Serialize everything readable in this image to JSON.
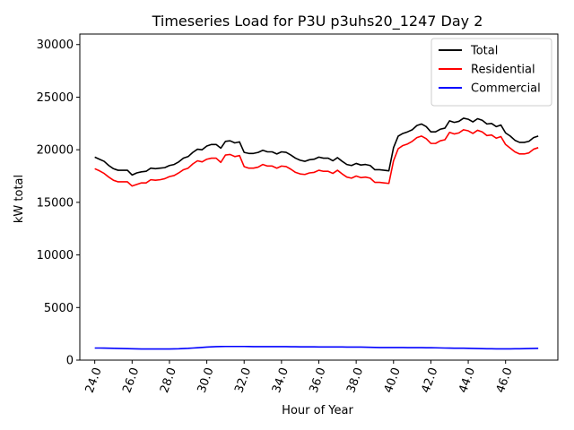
{
  "chart_data": {
    "type": "line",
    "title": "Timeseries Load for P3U p3uhs20_1247  Day 2",
    "xlabel": "Hour of Year",
    "ylabel": "kW total",
    "xlim": [
      23.2,
      48.8
    ],
    "ylim": [
      0,
      31000
    ],
    "xticks": [
      24,
      26,
      28,
      30,
      32,
      34,
      36,
      38,
      40,
      42,
      44,
      46
    ],
    "xtick_labels": [
      "24.0",
      "26.0",
      "28.0",
      "30.0",
      "32.0",
      "34.0",
      "36.0",
      "38.0",
      "40.0",
      "42.0",
      "44.0",
      "46.0"
    ],
    "yticks": [
      0,
      5000,
      10000,
      15000,
      20000,
      25000,
      30000
    ],
    "ytick_labels": [
      "0",
      "5000",
      "10000",
      "15000",
      "20000",
      "25000",
      "30000"
    ],
    "legend_position": "top-right",
    "grid": false,
    "x": [
      24.0,
      24.25,
      24.5,
      24.75,
      25.0,
      25.25,
      25.5,
      25.75,
      26.0,
      26.25,
      26.5,
      26.75,
      27.0,
      27.25,
      27.5,
      27.75,
      28.0,
      28.25,
      28.5,
      28.75,
      29.0,
      29.25,
      29.5,
      29.75,
      30.0,
      30.25,
      30.5,
      30.75,
      31.0,
      31.25,
      31.5,
      31.75,
      32.0,
      32.25,
      32.5,
      32.75,
      33.0,
      33.25,
      33.5,
      33.75,
      34.0,
      34.25,
      34.5,
      34.75,
      35.0,
      35.25,
      35.5,
      35.75,
      36.0,
      36.25,
      36.5,
      36.75,
      37.0,
      37.25,
      37.5,
      37.75,
      38.0,
      38.25,
      38.5,
      38.75,
      39.0,
      39.25,
      39.5,
      39.75,
      40.0,
      40.25,
      40.5,
      40.75,
      41.0,
      41.25,
      41.5,
      41.75,
      42.0,
      42.25,
      42.5,
      42.75,
      43.0,
      43.25,
      43.5,
      43.75,
      44.0,
      44.25,
      44.5,
      44.75,
      45.0,
      45.25,
      45.5,
      45.75,
      46.0,
      46.25,
      46.5,
      46.75,
      47.0,
      47.25,
      47.5,
      47.75
    ],
    "series": [
      {
        "name": "Total",
        "color": "#000000",
        "values": [
          19300,
          19100,
          18900,
          18500,
          18200,
          18050,
          18050,
          18050,
          17600,
          17800,
          17900,
          17950,
          18250,
          18200,
          18250,
          18300,
          18500,
          18600,
          18850,
          19200,
          19350,
          19750,
          20050,
          20000,
          20350,
          20500,
          20500,
          20150,
          20800,
          20850,
          20650,
          20750,
          19750,
          19650,
          19650,
          19750,
          19950,
          19800,
          19800,
          19600,
          19800,
          19750,
          19500,
          19200,
          19000,
          18900,
          19050,
          19100,
          19300,
          19200,
          19200,
          18950,
          19250,
          18900,
          18600,
          18500,
          18700,
          18550,
          18600,
          18500,
          18100,
          18100,
          18050,
          18000,
          20200,
          21300,
          21550,
          21700,
          21900,
          22300,
          22450,
          22200,
          21700,
          21700,
          21950,
          22050,
          22750,
          22600,
          22700,
          23000,
          22900,
          22650,
          22950,
          22800,
          22450,
          22500,
          22200,
          22350,
          21600,
          21300,
          20900,
          20700,
          20700,
          20800,
          21150,
          21300
        ]
      },
      {
        "name": "Residential",
        "color": "#ff0000",
        "values": [
          18200,
          18000,
          17750,
          17400,
          17100,
          16950,
          16950,
          16950,
          16550,
          16700,
          16850,
          16850,
          17150,
          17100,
          17150,
          17250,
          17450,
          17550,
          17800,
          18100,
          18250,
          18650,
          18950,
          18850,
          19100,
          19200,
          19200,
          18800,
          19500,
          19550,
          19350,
          19450,
          18400,
          18250,
          18250,
          18350,
          18600,
          18450,
          18450,
          18250,
          18450,
          18400,
          18150,
          17850,
          17700,
          17650,
          17800,
          17850,
          18050,
          17950,
          17950,
          17750,
          18050,
          17700,
          17400,
          17300,
          17500,
          17350,
          17400,
          17300,
          16900,
          16900,
          16850,
          16800,
          18950,
          20100,
          20400,
          20550,
          20800,
          21150,
          21300,
          21050,
          20600,
          20600,
          20850,
          20950,
          21650,
          21500,
          21600,
          21900,
          21800,
          21550,
          21850,
          21700,
          21350,
          21400,
          21100,
          21250,
          20500,
          20150,
          19800,
          19600,
          19600,
          19700,
          20050,
          20200
        ]
      },
      {
        "name": "Commercial",
        "color": "#0000ff",
        "values": [
          1150,
          1150,
          1140,
          1130,
          1120,
          1110,
          1100,
          1090,
          1080,
          1070,
          1060,
          1060,
          1060,
          1060,
          1060,
          1060,
          1060,
          1070,
          1080,
          1100,
          1120,
          1150,
          1180,
          1210,
          1240,
          1260,
          1280,
          1290,
          1300,
          1300,
          1300,
          1300,
          1300,
          1290,
          1280,
          1280,
          1280,
          1280,
          1280,
          1280,
          1280,
          1280,
          1270,
          1270,
          1260,
          1260,
          1260,
          1260,
          1250,
          1250,
          1250,
          1250,
          1250,
          1250,
          1240,
          1240,
          1240,
          1240,
          1230,
          1220,
          1210,
          1200,
          1200,
          1200,
          1200,
          1200,
          1200,
          1190,
          1190,
          1190,
          1190,
          1180,
          1180,
          1170,
          1160,
          1150,
          1140,
          1130,
          1130,
          1130,
          1120,
          1110,
          1100,
          1090,
          1080,
          1080,
          1070,
          1070,
          1070,
          1070,
          1080,
          1080,
          1090,
          1100,
          1110,
          1120
        ]
      }
    ]
  }
}
